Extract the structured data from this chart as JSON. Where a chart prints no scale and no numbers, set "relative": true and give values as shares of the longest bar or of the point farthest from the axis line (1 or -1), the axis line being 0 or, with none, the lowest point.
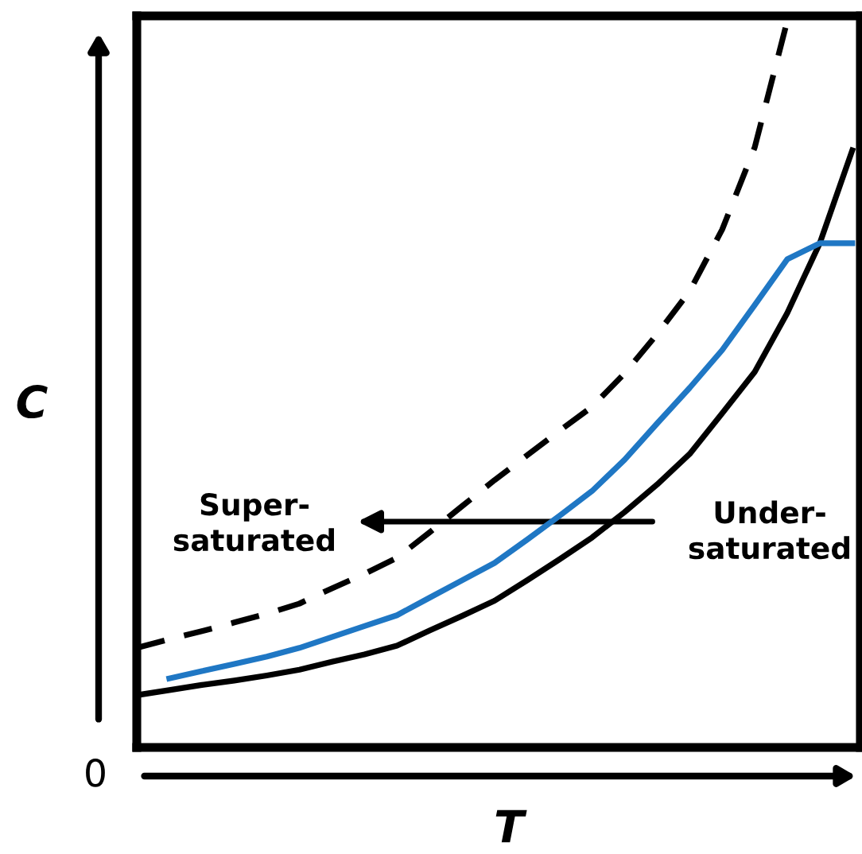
{
  "chart_data": {
    "type": "line",
    "relative": true,
    "xlabel": "T",
    "ylabel": "C",
    "categories": [
      null,
      null,
      null,
      null,
      null,
      null,
      null,
      null,
      null,
      null,
      null,
      null,
      null,
      null,
      null,
      null,
      null,
      null,
      null,
      null,
      null,
      null,
      null
    ],
    "series": [
      {
        "color": "#000000",
        "line_style": "solid",
        "values": [
          0.072,
          0.079,
          0.086,
          0.092,
          0.099,
          0.107,
          0.118,
          0.128,
          0.14,
          0.161,
          0.181,
          0.202,
          0.23,
          0.259,
          0.289,
          0.324,
          0.362,
          0.404,
          0.46,
          0.517,
          0.598,
          0.694,
          0.822
        ]
      },
      {
        "color": "#000000",
        "line_style": "dashed",
        "values": [
          0.137,
          0.149,
          0.16,
          0.172,
          0.184,
          0.198,
          0.219,
          0.239,
          0.261,
          0.296,
          0.332,
          0.368,
          0.402,
          0.436,
          0.469,
          0.515,
          0.569,
          0.628,
          0.713,
          0.826,
          1.0,
          null,
          null
        ]
      },
      {
        "color": "#1f77c4",
        "line_style": "solid",
        "values": [
          null,
          0.095,
          0.105,
          0.115,
          0.125,
          0.137,
          0.152,
          0.167,
          0.182,
          0.206,
          0.23,
          0.254,
          0.286,
          0.319,
          0.353,
          0.396,
          0.446,
          0.495,
          0.547,
          0.609,
          0.672,
          0.694,
          0.694
        ]
      }
    ],
    "annotations": [
      "0",
      "Super-\nsaturated",
      "Under-\nsaturated"
    ]
  }
}
